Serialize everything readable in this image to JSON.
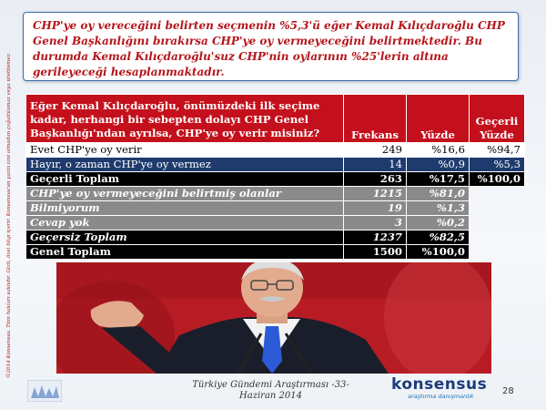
{
  "callout": {
    "text": "CHP'ye oy vereceğini belirten seçmenin %5,3'ü eğer Kemal Kılıçdaroğlu CHP Genel Başkanlığını bırakırsa CHP'ye oy vermeyeceğini belirtmektedir. Bu durumda Kemal Kılıçdaroğlu'suz CHP'nin oylarının %25'lerin altına gerileyeceği hesaplanmaktadır."
  },
  "table": {
    "question": "Eğer Kemal Kılıçdaroğlu, önümüzdeki ilk seçime kadar, herhangi bir sebepten dolayı CHP Genel Başkanlığı'ndan ayrılsa, CHP'ye oy verir misiniz?",
    "col_frequency": "Frekans",
    "col_percent": "Yüzde",
    "col_valid": "Geçerli Yüzde",
    "rows": [
      {
        "label": "Evet CHP'ye oy verir",
        "freq": "249",
        "pct": "%16,6",
        "valid": "%94,7"
      },
      {
        "label": "Hayır, o zaman CHP'ye oy vermez",
        "freq": "14",
        "pct": "%0,9",
        "valid": "%5,3"
      },
      {
        "label": "Geçerli Toplam",
        "freq": "263",
        "pct": "%17,5",
        "valid": "%100,0"
      },
      {
        "label": "CHP'ye oy vermeyeceğini belirtmiş olanlar",
        "freq": "1215",
        "pct": "%81,0",
        "valid": ""
      },
      {
        "label": "Bilmiyorum",
        "freq": "19",
        "pct": "%1,3",
        "valid": ""
      },
      {
        "label": "Cevap yok",
        "freq": "3",
        "pct": "%0,2",
        "valid": ""
      },
      {
        "label": "Geçersiz Toplam",
        "freq": "1237",
        "pct": "%82,5",
        "valid": ""
      },
      {
        "label": "Genel Toplam",
        "freq": "1500",
        "pct": "%100,0",
        "valid": ""
      }
    ]
  },
  "sidebar_text": "©2014 Konsensus. Tüm hakları saklıdır. Gizli, özel bilgi içerir. Konsensus'un yazılı izni olmadan çoğaltılamaz veya üretilemez.",
  "footer": {
    "line1": "Türkiye Gündemi Araştırması -33-",
    "line2": "Haziran 2014"
  },
  "logo": {
    "brand": "konsensus",
    "tagline": "araştırma danışmanlık"
  },
  "page_number": "28",
  "colors": {
    "red": "#c4101c",
    "navy": "#1f3b6e",
    "black": "#000000",
    "gray": "#8a8a8a"
  }
}
